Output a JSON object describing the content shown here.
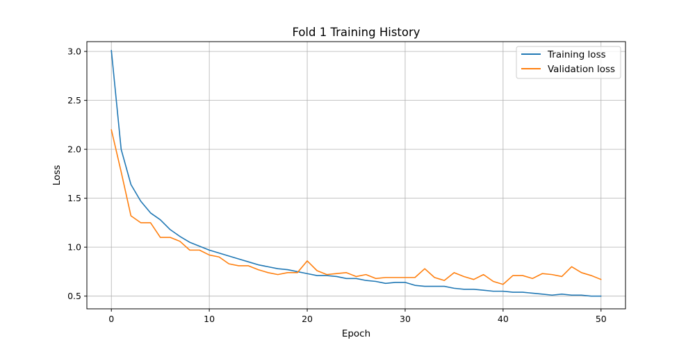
{
  "chart_data": {
    "type": "line",
    "title": "Fold 1 Training History",
    "xlabel": "Epoch",
    "ylabel": "Loss",
    "xlim": [
      -2.5,
      52.5
    ],
    "ylim": [
      0.37,
      3.1
    ],
    "xticks": [
      0,
      10,
      20,
      30,
      40,
      50
    ],
    "yticks": [
      0.5,
      1.0,
      1.5,
      2.0,
      2.5,
      3.0
    ],
    "xtick_labels": [
      "0",
      "10",
      "20",
      "30",
      "40",
      "50"
    ],
    "ytick_labels": [
      "0.5",
      "1.0",
      "1.5",
      "2.0",
      "2.5",
      "3.0"
    ],
    "grid": true,
    "legend_position": "top-right",
    "x": [
      0,
      1,
      2,
      3,
      4,
      5,
      6,
      7,
      8,
      9,
      10,
      11,
      12,
      13,
      14,
      15,
      16,
      17,
      18,
      19,
      20,
      21,
      22,
      23,
      24,
      25,
      26,
      27,
      28,
      29,
      30,
      31,
      32,
      33,
      34,
      35,
      36,
      37,
      38,
      39,
      40,
      41,
      42,
      43,
      44,
      45,
      46,
      47,
      48,
      49,
      50
    ],
    "series": [
      {
        "name": "Training loss",
        "color": "#1f77b4",
        "values": [
          3.01,
          2.0,
          1.64,
          1.47,
          1.35,
          1.28,
          1.18,
          1.11,
          1.05,
          1.01,
          0.97,
          0.94,
          0.91,
          0.88,
          0.85,
          0.82,
          0.8,
          0.78,
          0.77,
          0.75,
          0.73,
          0.71,
          0.71,
          0.7,
          0.68,
          0.68,
          0.66,
          0.65,
          0.63,
          0.64,
          0.64,
          0.61,
          0.6,
          0.6,
          0.6,
          0.58,
          0.57,
          0.57,
          0.56,
          0.55,
          0.55,
          0.54,
          0.54,
          0.53,
          0.52,
          0.51,
          0.52,
          0.51,
          0.51,
          0.5,
          0.5
        ]
      },
      {
        "name": "Validation loss",
        "color": "#ff7f0e",
        "values": [
          2.2,
          1.77,
          1.32,
          1.25,
          1.25,
          1.1,
          1.1,
          1.06,
          0.97,
          0.97,
          0.92,
          0.9,
          0.83,
          0.81,
          0.81,
          0.77,
          0.74,
          0.72,
          0.74,
          0.74,
          0.86,
          0.76,
          0.72,
          0.73,
          0.74,
          0.7,
          0.72,
          0.68,
          0.69,
          0.69,
          0.69,
          0.69,
          0.78,
          0.69,
          0.66,
          0.74,
          0.7,
          0.67,
          0.72,
          0.65,
          0.62,
          0.71,
          0.71,
          0.68,
          0.73,
          0.72,
          0.7,
          0.8,
          0.74,
          0.71,
          0.67
        ]
      }
    ]
  }
}
